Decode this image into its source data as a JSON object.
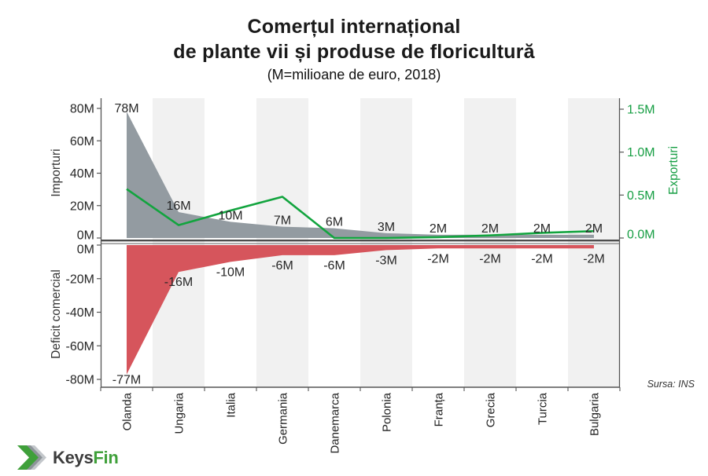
{
  "header": {
    "title_line1": "Comerțul internațional",
    "title_line2": "de plante vii și produse de floricultură",
    "subtitle": "(M=milioane de euro, 2018)"
  },
  "chart_data": {
    "type": "area",
    "title": "Comerțul internațional de plante vii și produse de floricultură",
    "subtitle": "(M=milioane de euro, 2018)",
    "categories": [
      "Olanda",
      "Ungaria",
      "Italia",
      "Germania",
      "Danemarca",
      "Polonia",
      "Franța",
      "Grecia",
      "Turcia",
      "Bulgaria"
    ],
    "series": [
      {
        "name": "Importuri",
        "type": "area",
        "axis": "left_top",
        "values": [
          78,
          16,
          10,
          7,
          6,
          3,
          2,
          2,
          2,
          2
        ],
        "labels": [
          "78M",
          "16M",
          "10M",
          "7M",
          "6M",
          "3M",
          "2M",
          "2M",
          "2M",
          "2M"
        ]
      },
      {
        "name": "Deficit comercial",
        "type": "area",
        "axis": "left_bottom",
        "values": [
          -77,
          -16,
          -10,
          -6,
          -6,
          -3,
          -2,
          -2,
          -2,
          -2
        ],
        "labels": [
          "-77M",
          "-16M",
          "-10M",
          "-6M",
          "-6M",
          "-3M",
          "-2M",
          "-2M",
          "-2M",
          "-2M"
        ]
      },
      {
        "name": "Exporturi",
        "type": "line",
        "axis": "right",
        "values": [
          0.57,
          0.15,
          0.32,
          0.48,
          0.0,
          0.0,
          0.01,
          0.03,
          0.06,
          0.08
        ]
      }
    ],
    "axes": {
      "left_top": {
        "label": "Importuri",
        "tick_labels": [
          "80M",
          "60M",
          "40M",
          "20M",
          "0M"
        ],
        "tick_values": [
          80,
          60,
          40,
          20,
          0
        ],
        "range": [
          0,
          80
        ]
      },
      "left_bottom": {
        "label": "Deficit comercial",
        "tick_labels": [
          "0M",
          "-20M",
          "-40M",
          "-60M",
          "-80M"
        ],
        "tick_values": [
          0,
          -20,
          -40,
          -60,
          -80
        ],
        "range": [
          0,
          -80
        ]
      },
      "right": {
        "label": "Exporturi",
        "tick_labels": [
          "1.5M",
          "1.0M",
          "0.5M",
          "0.0M"
        ],
        "tick_values": [
          1.5,
          1.0,
          0.5,
          0.0
        ],
        "range": [
          0,
          1.5
        ]
      }
    },
    "grid_bands": "alternating category stripes",
    "legend": "none",
    "source": "Sursa: INS"
  },
  "colors": {
    "import_area": "#939ba1",
    "deficit_area": "#d6555c",
    "export_line": "#12a43e",
    "export_text": "#169e43",
    "band": "#f1f1f1",
    "axis_line": "#555555",
    "separator_line": "#4d4d4d",
    "text": "#262626",
    "logo_green": "#3fa03a",
    "logo_gray_mid": "#8d9499",
    "logo_gray_light": "#c3c7cb",
    "logo_text_dark": "#3c3c3c"
  },
  "footer": {
    "logo_text_dark": "Keys",
    "logo_text_green": "Fin"
  }
}
